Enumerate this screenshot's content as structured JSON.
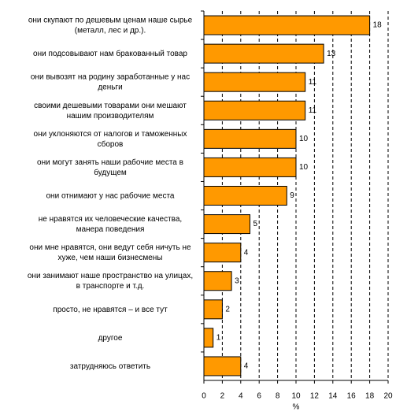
{
  "chart_data": {
    "type": "bar",
    "orientation": "horizontal",
    "categories": [
      "они скупают по дешевым ценам наше сырье\n(металл, лес и др.).",
      "они подсовывают нам бракованный товар",
      "они вывозят на родину заработанные у нас\nденьги",
      "своими дешевыми товарами они мешают\nнашим производителям",
      "они уклоняются от налогов и таможенных\nсборов",
      "они могут занять наши рабочие места в\nбудущем",
      "они отнимают у нас рабочие места",
      "не нравятся их человеческие качества,\nманера поведения",
      "они мне нравятся, они ведут себя ничуть не\nхуже, чем наши  бизнесмены",
      "они занимают наше пространство на улицах,\nв транспорте и т.д.",
      "просто, не нравятся – и все тут",
      "другое",
      "затрудняюсь ответить"
    ],
    "values": [
      18,
      13,
      11,
      11,
      10,
      10,
      9,
      5,
      4,
      3,
      2,
      1,
      4
    ],
    "color": "#ff9900",
    "xlabel": "%",
    "xlim": [
      0,
      20
    ],
    "xticks": [
      0,
      2,
      4,
      6,
      8,
      10,
      12,
      14,
      16,
      18,
      20
    ],
    "grid": true
  }
}
